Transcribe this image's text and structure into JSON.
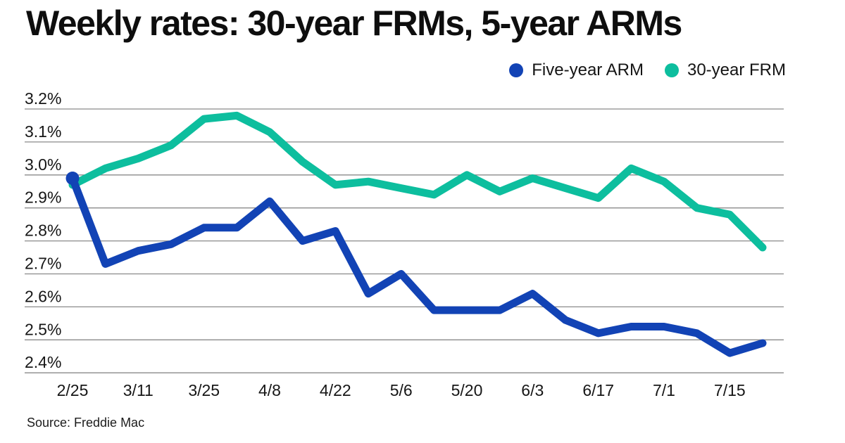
{
  "title": "Weekly rates: 30-year FRMs, 5-year ARMs",
  "source": "Source: Freddie Mac",
  "legend": {
    "items": [
      {
        "label": "Five-year ARM",
        "color": "#1243b5"
      },
      {
        "label": "30-year FRM",
        "color": "#0dbe9e"
      }
    ]
  },
  "colors": {
    "arm_blue": "#1243b5",
    "frm_teal": "#0dbe9e",
    "gridline": "#8a8a8a",
    "text": "#161616"
  },
  "chart_data": {
    "type": "line",
    "x": [
      "2/25",
      "3/4",
      "3/11",
      "3/18",
      "3/25",
      "4/1",
      "4/8",
      "4/15",
      "4/22",
      "4/29",
      "5/6",
      "5/13",
      "5/20",
      "5/27",
      "6/3",
      "6/10",
      "6/17",
      "6/24",
      "7/1",
      "7/8",
      "7/15",
      "7/22"
    ],
    "series": [
      {
        "name": "Five-year ARM",
        "color": "#1243b5",
        "start_marker": true,
        "values": [
          2.99,
          2.73,
          2.77,
          2.79,
          2.84,
          2.84,
          2.92,
          2.8,
          2.83,
          2.64,
          2.7,
          2.59,
          2.59,
          2.59,
          2.64,
          2.56,
          2.52,
          2.54,
          2.54,
          2.52,
          2.46,
          2.49
        ]
      },
      {
        "name": "30-year FRM",
        "color": "#0dbe9e",
        "start_marker": false,
        "values": [
          2.97,
          3.02,
          3.05,
          3.09,
          3.17,
          3.18,
          3.13,
          3.04,
          2.97,
          2.98,
          2.96,
          2.94,
          3.0,
          2.95,
          2.99,
          2.96,
          2.93,
          3.02,
          2.98,
          2.9,
          2.88,
          2.78
        ]
      }
    ],
    "title": "Weekly rates: 30-year FRMs, 5-year ARMs",
    "xlabel": "",
    "ylabel": "",
    "ylim": [
      2.4,
      3.2
    ],
    "yticks": [
      "3.2%",
      "3.1%",
      "3.0%",
      "2.9%",
      "2.8%",
      "2.7%",
      "2.6%",
      "2.5%",
      "2.4%"
    ],
    "xticks": [
      "2/25",
      "3/11",
      "3/25",
      "4/8",
      "4/22",
      "5/6",
      "5/20",
      "6/3",
      "6/17",
      "7/1",
      "7/15"
    ],
    "grid": "horizontal",
    "legend_position": "top-right",
    "unit": "%"
  }
}
